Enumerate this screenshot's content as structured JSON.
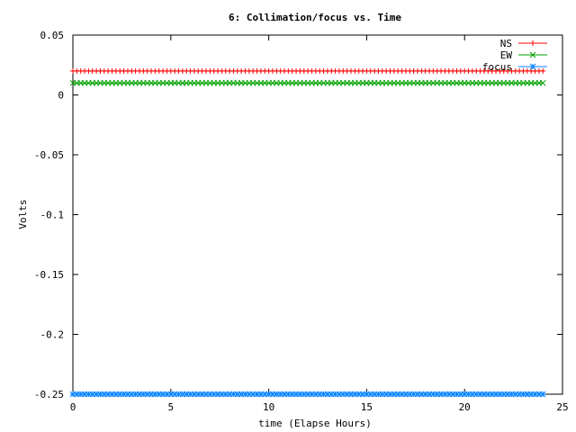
{
  "chart_data": {
    "type": "line",
    "title": "6: Collimation/focus vs. Time",
    "xlabel": "time (Elapse Hours)",
    "ylabel": "Volts",
    "xlim": [
      0,
      25
    ],
    "ylim": [
      -0.25,
      0.05
    ],
    "xticks": [
      0,
      5,
      10,
      15,
      20,
      25
    ],
    "xtick_labels": [
      "0",
      "5",
      "10",
      "15",
      "20",
      "25"
    ],
    "yticks": [
      0.05,
      0,
      -0.05,
      -0.1,
      -0.15,
      -0.2,
      -0.25
    ],
    "ytick_labels": [
      "0.05",
      "0",
      "-0.05",
      "-0.1",
      "-0.15",
      "-0.2",
      "-0.25"
    ],
    "grid": false,
    "legend_position": "top-right",
    "x_range": [
      0,
      24
    ],
    "series": [
      {
        "name": "NS",
        "color": "#ff0000",
        "marker": "plus",
        "value": 0.02
      },
      {
        "name": "EW",
        "color": "#00a000",
        "marker": "cross",
        "value": 0.01
      },
      {
        "name": "focus",
        "color": "#0080ff",
        "marker": "star",
        "value": -0.25
      }
    ]
  }
}
